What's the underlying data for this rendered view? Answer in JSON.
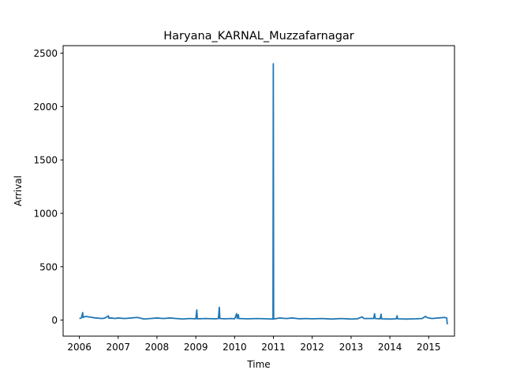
{
  "chart_data": {
    "type": "line",
    "title": "Haryana_KARNAL_Muzzafarnagar",
    "xlabel": "Time",
    "ylabel": "Arrival",
    "xlim": [
      "2005-08-01",
      "2015-09-01"
    ],
    "ylim": [
      -150,
      2570
    ],
    "x_ticks": [
      "2006",
      "2007",
      "2008",
      "2009",
      "2010",
      "2011",
      "2012",
      "2013",
      "2014",
      "2015"
    ],
    "y_ticks": [
      0,
      500,
      1000,
      1500,
      2000,
      2500
    ],
    "grid": false,
    "legend": "none",
    "series": [
      {
        "color": "#1f77b4",
        "points": [
          [
            "2006-01-01",
            15
          ],
          [
            "2006-01-20",
            20
          ],
          [
            "2006-02-01",
            70
          ],
          [
            "2006-02-05",
            25
          ],
          [
            "2006-03-01",
            35
          ],
          [
            "2006-04-01",
            30
          ],
          [
            "2006-05-01",
            25
          ],
          [
            "2006-06-01",
            20
          ],
          [
            "2006-07-01",
            18
          ],
          [
            "2006-08-01",
            15
          ],
          [
            "2006-09-01",
            20
          ],
          [
            "2006-10-01",
            40
          ],
          [
            "2006-10-05",
            18
          ],
          [
            "2006-11-01",
            20
          ],
          [
            "2006-12-01",
            15
          ],
          [
            "2007-01-01",
            20
          ],
          [
            "2007-03-01",
            15
          ],
          [
            "2007-05-01",
            20
          ],
          [
            "2007-07-01",
            25
          ],
          [
            "2007-09-01",
            10
          ],
          [
            "2007-11-01",
            15
          ],
          [
            "2008-01-01",
            20
          ],
          [
            "2008-03-01",
            15
          ],
          [
            "2008-05-01",
            20
          ],
          [
            "2008-07-01",
            15
          ],
          [
            "2008-09-01",
            10
          ],
          [
            "2008-11-01",
            15
          ],
          [
            "2009-01-01",
            12
          ],
          [
            "2009-01-10",
            95
          ],
          [
            "2009-01-15",
            12
          ],
          [
            "2009-04-01",
            15
          ],
          [
            "2009-07-01",
            12
          ],
          [
            "2009-08-01",
            15
          ],
          [
            "2009-08-10",
            120
          ],
          [
            "2009-08-15",
            15
          ],
          [
            "2009-10-01",
            12
          ],
          [
            "2009-12-01",
            15
          ],
          [
            "2010-01-01",
            12
          ],
          [
            "2010-01-20",
            60
          ],
          [
            "2010-01-25",
            15
          ],
          [
            "2010-02-05",
            50
          ],
          [
            "2010-02-10",
            15
          ],
          [
            "2010-05-01",
            12
          ],
          [
            "2010-08-01",
            15
          ],
          [
            "2010-11-01",
            12
          ],
          [
            "2010-12-28",
            10
          ],
          [
            "2010-12-31",
            2400
          ],
          [
            "2011-01-03",
            10
          ],
          [
            "2011-03-01",
            20
          ],
          [
            "2011-05-01",
            15
          ],
          [
            "2011-07-01",
            20
          ],
          [
            "2011-09-01",
            12
          ],
          [
            "2011-11-01",
            15
          ],
          [
            "2012-01-01",
            12
          ],
          [
            "2012-04-01",
            15
          ],
          [
            "2012-07-01",
            10
          ],
          [
            "2012-10-01",
            15
          ],
          [
            "2013-01-01",
            10
          ],
          [
            "2013-03-01",
            12
          ],
          [
            "2013-04-15",
            30
          ],
          [
            "2013-05-01",
            15
          ],
          [
            "2013-08-01",
            15
          ],
          [
            "2013-08-10",
            60
          ],
          [
            "2013-08-15",
            15
          ],
          [
            "2013-10-01",
            12
          ],
          [
            "2013-10-10",
            55
          ],
          [
            "2013-10-15",
            12
          ],
          [
            "2014-01-01",
            10
          ],
          [
            "2014-03-01",
            12
          ],
          [
            "2014-03-10",
            40
          ],
          [
            "2014-03-15",
            12
          ],
          [
            "2014-06-01",
            10
          ],
          [
            "2014-09-01",
            12
          ],
          [
            "2014-11-01",
            15
          ],
          [
            "2014-12-01",
            35
          ],
          [
            "2014-12-15",
            25
          ],
          [
            "2015-01-01",
            20
          ],
          [
            "2015-02-01",
            15
          ],
          [
            "2015-04-01",
            20
          ],
          [
            "2015-06-01",
            25
          ],
          [
            "2015-06-20",
            20
          ],
          [
            "2015-06-25",
            -40
          ]
        ]
      }
    ]
  }
}
